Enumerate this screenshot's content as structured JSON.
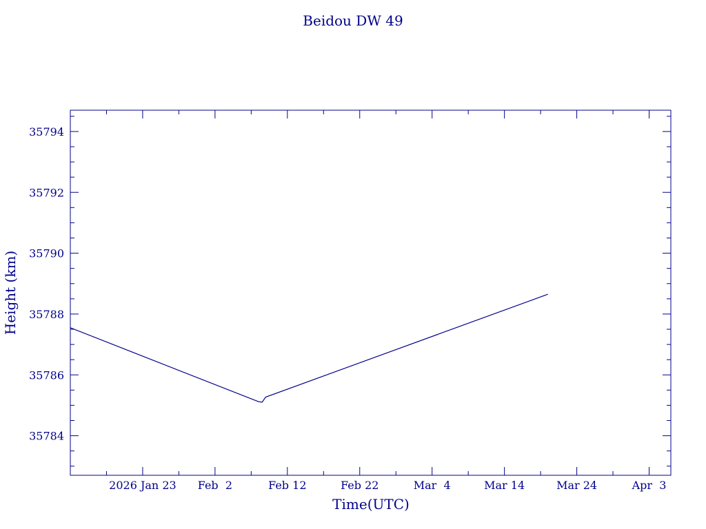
{
  "chart_data": {
    "type": "line",
    "title": "Beidou DW 49",
    "xlabel": "Time(UTC)",
    "ylabel": "Height (km)",
    "ylim": [
      35782.7,
      35794.7
    ],
    "xlim": [
      "2026-01-13",
      "2026-04-06"
    ],
    "x_tick_labels": [
      "2026 Jan 23",
      "Feb  2",
      "Feb 12",
      "Feb 22",
      "Mar  4",
      "Mar 14",
      "Mar 24",
      "Apr  3"
    ],
    "x_tick_dates": [
      "2026-01-23",
      "2026-02-02",
      "2026-02-12",
      "2026-02-22",
      "2026-03-04",
      "2026-03-14",
      "2026-03-24",
      "2026-04-03"
    ],
    "y_ticks": [
      35784,
      35786,
      35788,
      35790,
      35792,
      35794
    ],
    "y_tick_labels": [
      "35784",
      "35786",
      "35788",
      "35790",
      "35792",
      "35794"
    ],
    "grid": false,
    "color": "#00008b",
    "series": [
      {
        "x": [
          "2026-01-13",
          "2026-02-08",
          "2026-02-08T12:00",
          "2026-02-09",
          "2026-03-20"
        ],
        "y": [
          35787.55,
          35785.12,
          35785.1,
          35785.27,
          35788.65
        ]
      }
    ]
  }
}
